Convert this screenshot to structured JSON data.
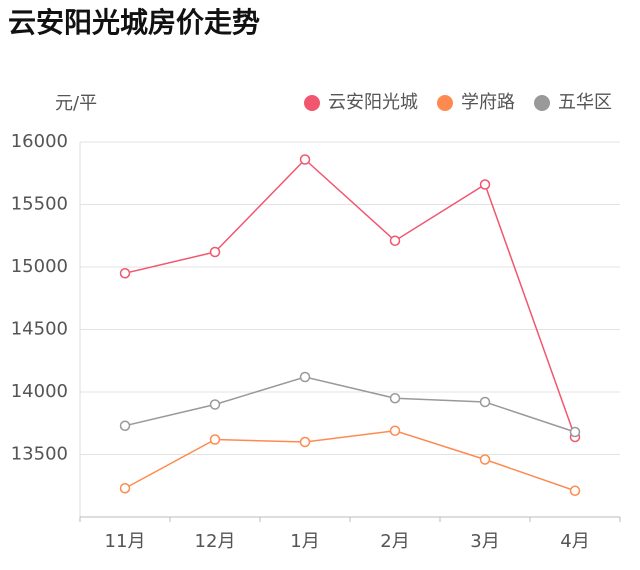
{
  "chart_data": {
    "type": "line",
    "title": "云安阳光城房价走势",
    "y_unit": "元/平",
    "categories": [
      "11月",
      "12月",
      "1月",
      "2月",
      "3月",
      "4月"
    ],
    "series": [
      {
        "name": "云安阳光城",
        "color": "#f1566e",
        "values": [
          14950,
          15120,
          15860,
          15210,
          15660,
          13640
        ]
      },
      {
        "name": "学府路",
        "color": "#ff8a50",
        "values": [
          13230,
          13620,
          13600,
          13690,
          13460,
          13210
        ]
      },
      {
        "name": "五华区",
        "color": "#999999",
        "values": [
          13730,
          13900,
          14120,
          13950,
          13920,
          13680
        ]
      }
    ],
    "ylim": [
      13000,
      16000
    ],
    "yticks": [
      13500,
      14000,
      14500,
      15000,
      15500,
      16000
    ],
    "grid": true,
    "legend": "top-right"
  }
}
